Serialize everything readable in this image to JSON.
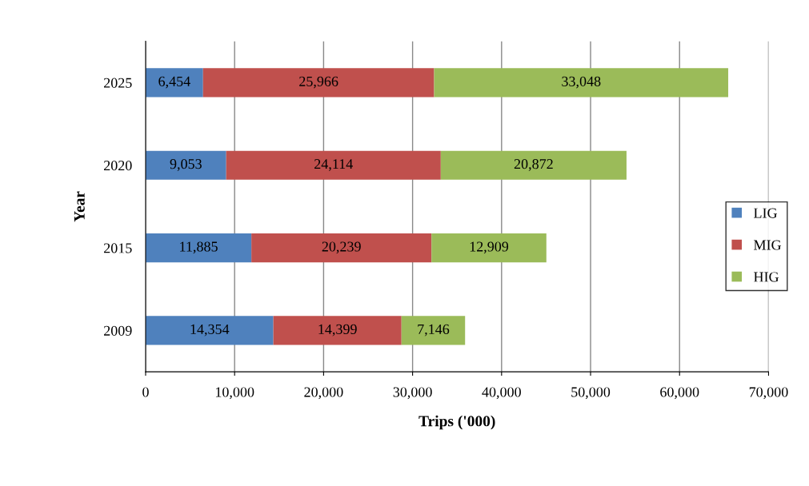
{
  "chart_data": {
    "type": "bar",
    "orientation": "horizontal",
    "stacked": true,
    "xlabel": "Trips ('000)",
    "ylabel": "Year",
    "categories": [
      "2025",
      "2020",
      "2015",
      "2009"
    ],
    "series": [
      {
        "name": "LIG",
        "color": "#4f81bd",
        "values": [
          6454,
          9053,
          11885,
          14354
        ],
        "value_labels": [
          "6,454",
          "9,053",
          "11,885",
          "14,354"
        ]
      },
      {
        "name": "MIG",
        "color": "#c0504d",
        "values": [
          25966,
          24114,
          20239,
          14399
        ],
        "value_labels": [
          "25,966",
          "24,114",
          "20,239",
          "14,399"
        ]
      },
      {
        "name": "HIG",
        "color": "#9bbb59",
        "values": [
          33048,
          20872,
          12909,
          7146
        ],
        "value_labels": [
          "33,048",
          "20,872",
          "12,909",
          "7,146"
        ]
      }
    ],
    "xlim": [
      0,
      70000
    ],
    "xticks": [
      {
        "value": 0,
        "label": "0"
      },
      {
        "value": 10000,
        "label": "10,000"
      },
      {
        "value": 20000,
        "label": "20,000"
      },
      {
        "value": 30000,
        "label": "30,000"
      },
      {
        "value": 40000,
        "label": "40,000"
      },
      {
        "value": 50000,
        "label": "50,000"
      },
      {
        "value": 60000,
        "label": "60,000"
      },
      {
        "value": 70000,
        "label": "70,000"
      }
    ],
    "grid": "x",
    "legend": "right"
  }
}
